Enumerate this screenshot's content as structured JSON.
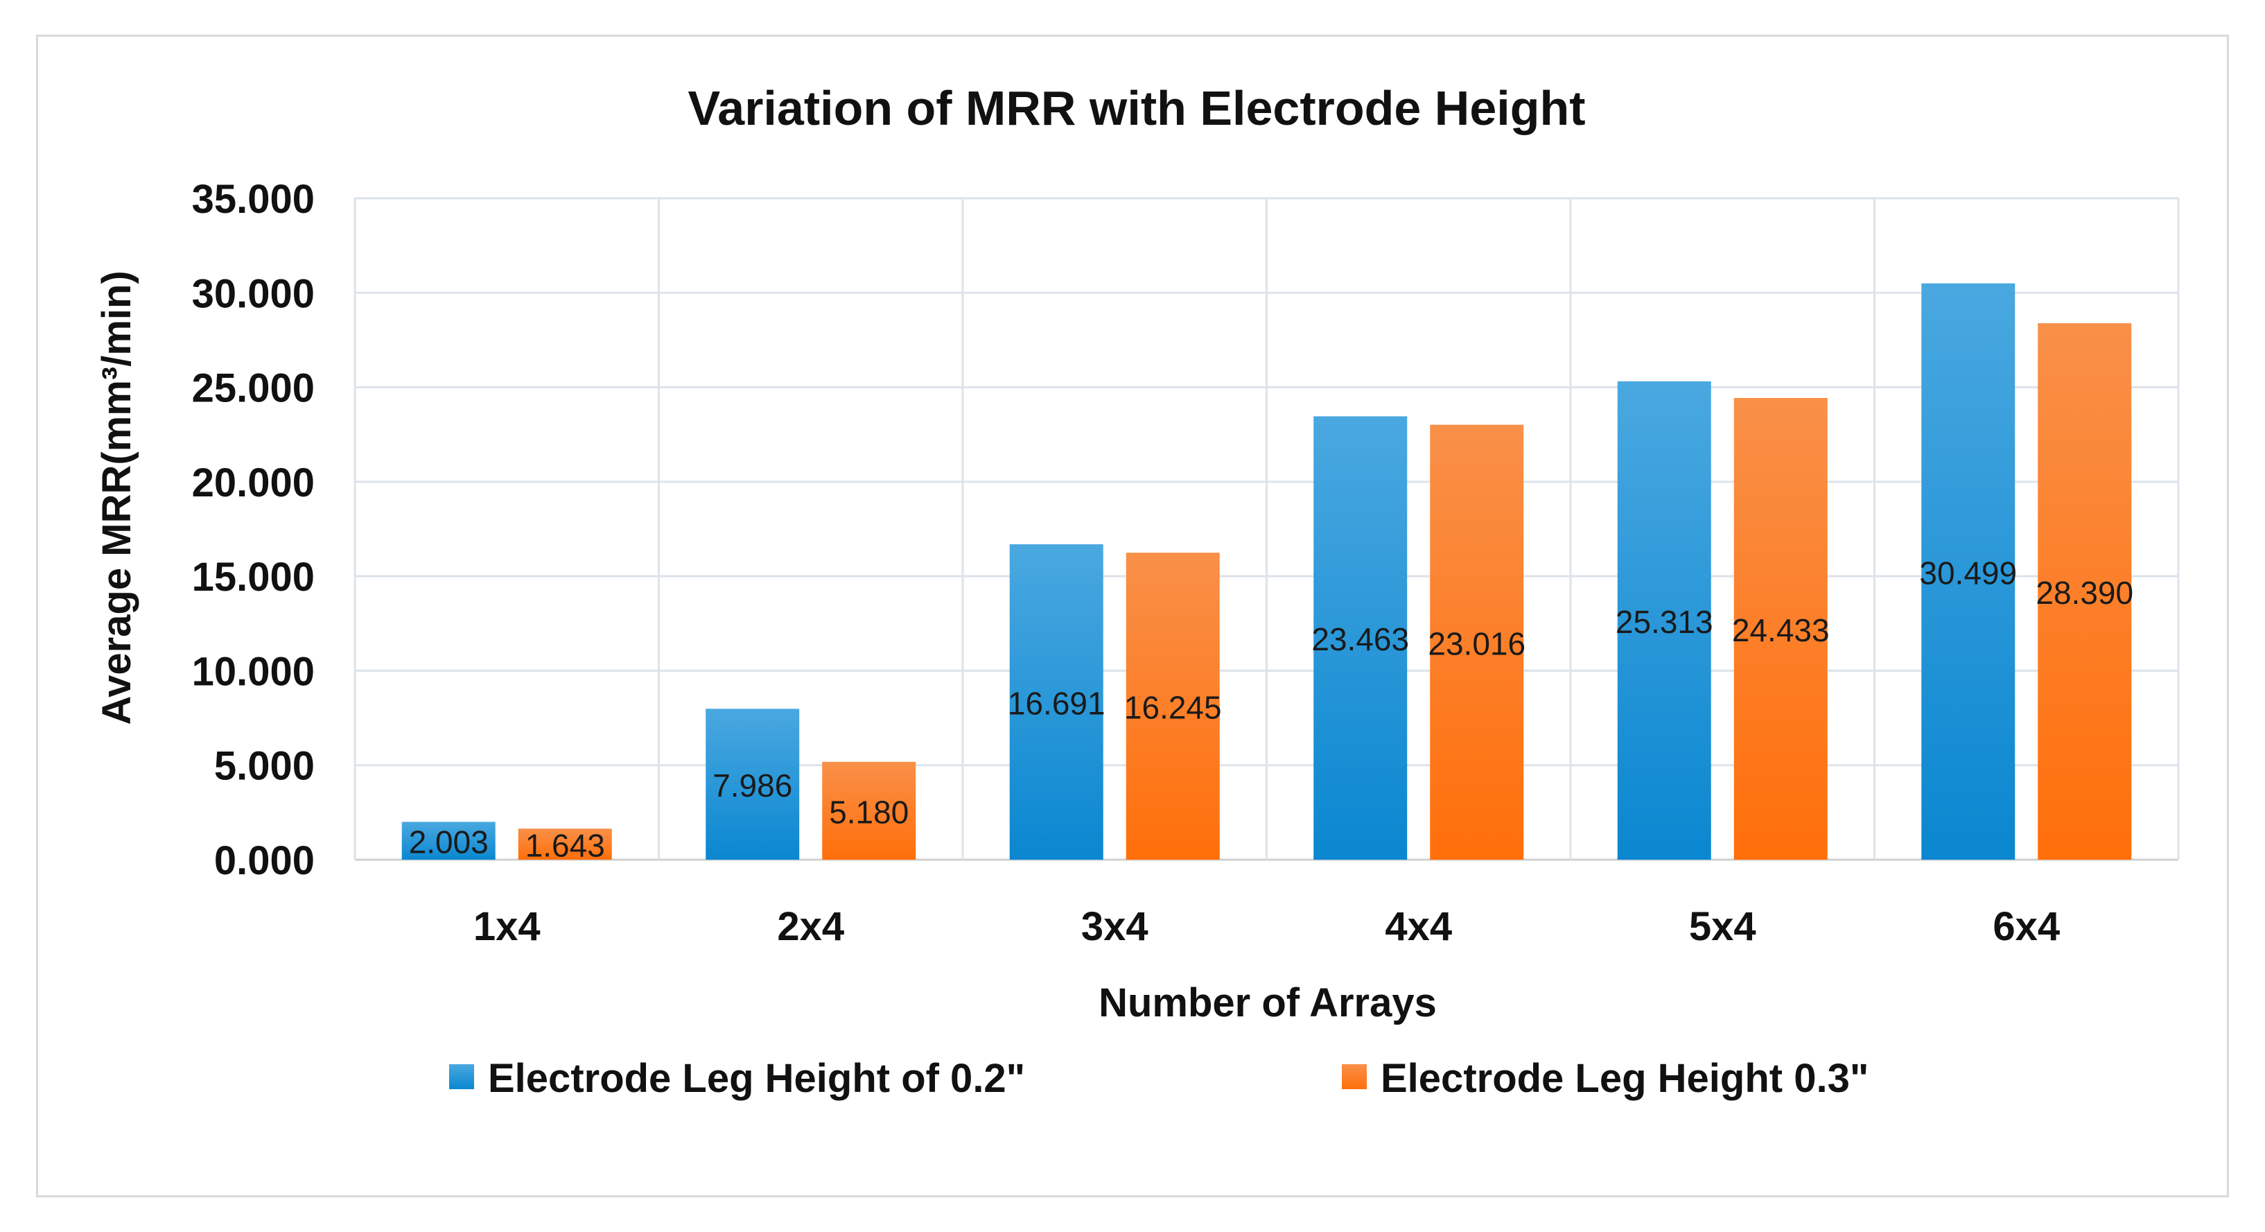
{
  "chart_data": {
    "type": "bar",
    "title": "Variation of MRR with Electrode Height",
    "xlabel": "Number of Arrays",
    "ylabel": "Average MRR(mm³/min)",
    "categories": [
      "1x4",
      "2x4",
      "3x4",
      "4x4",
      "5x4",
      "6x4"
    ],
    "ylim": [
      0,
      35
    ],
    "yticks": [
      0,
      5,
      10,
      15,
      20,
      25,
      30,
      35
    ],
    "ytick_labels": [
      "0.000",
      "5.000",
      "10.000",
      "15.000",
      "20.000",
      "25.000",
      "30.000",
      "35.000"
    ],
    "grid": true,
    "legend_position": "bottom",
    "series": [
      {
        "name": "Electrode Leg Height of 0.2\"",
        "color": "#1f8fd6",
        "values": [
          2.003,
          7.986,
          16.691,
          23.463,
          25.313,
          30.499
        ],
        "labels": [
          "2.003",
          "7.986",
          "16.691",
          "23.463",
          "25.313",
          "30.499"
        ]
      },
      {
        "name": "Electrode Leg Height 0.3\"",
        "color": "#f57a1f",
        "values": [
          1.643,
          5.18,
          16.245,
          23.016,
          24.433,
          28.39
        ],
        "labels": [
          "1.643",
          "5.180",
          "16.245",
          "23.016",
          "24.433",
          "28.390"
        ]
      }
    ]
  }
}
